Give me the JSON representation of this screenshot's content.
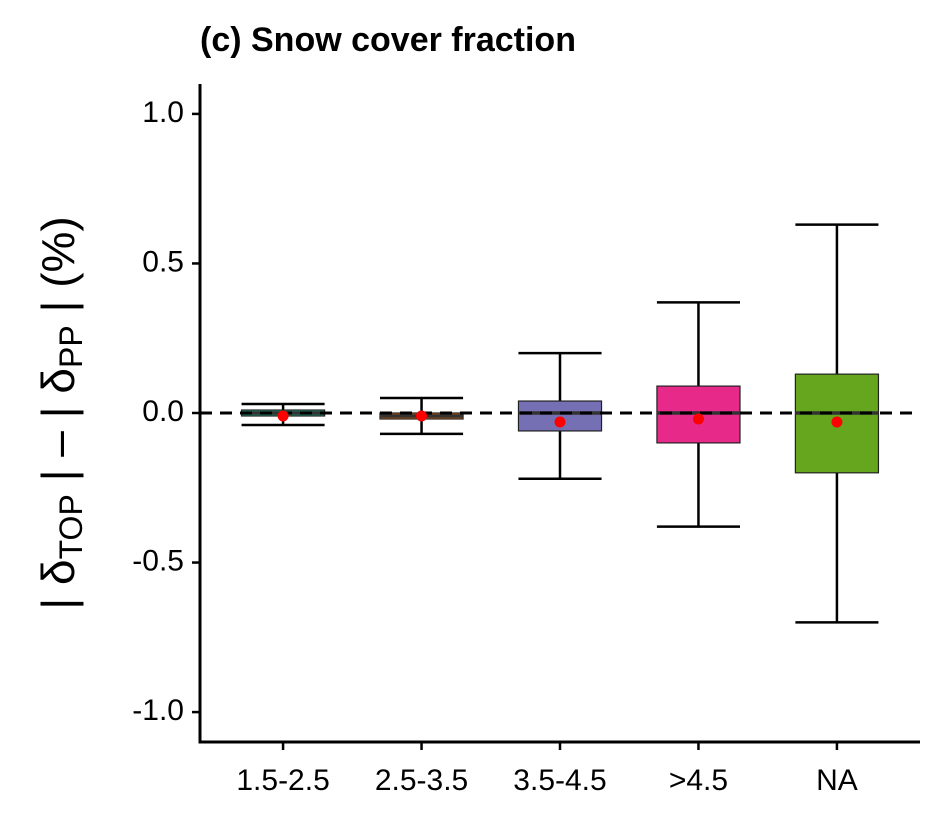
{
  "chart_data": {
    "type": "box",
    "title": "(c) Snow cover fraction",
    "y_label": {
      "prefix": "| δ",
      "sub1": "TOP",
      "middle": " | – | δ",
      "sub2": "PP",
      "suffix": " | (%)"
    },
    "categories": [
      "1.5-2.5",
      "2.5-3.5",
      "3.5-4.5",
      ">4.5",
      "NA"
    ],
    "boxes": [
      {
        "min": -0.04,
        "q1": -0.01,
        "median": 0,
        "q3": 0.01,
        "max": 0.03,
        "mean": -0.01,
        "color": "#1b9e77"
      },
      {
        "min": -0.07,
        "q1": -0.02,
        "median": -0.01,
        "q3": 0,
        "max": 0.05,
        "mean": -0.01,
        "color": "#d95f02"
      },
      {
        "min": -0.22,
        "q1": -0.06,
        "median": 0,
        "q3": 0.04,
        "max": 0.2,
        "mean": -0.03,
        "color": "#7570b3"
      },
      {
        "min": -0.38,
        "q1": -0.1,
        "median": 0,
        "q3": 0.09,
        "max": 0.37,
        "mean": -0.02,
        "color": "#e7298a"
      },
      {
        "min": -0.7,
        "q1": -0.2,
        "median": 0,
        "q3": 0.13,
        "max": 0.63,
        "mean": -0.03,
        "color": "#66a61e"
      }
    ],
    "mean_color": "#ff0000",
    "hline": 0,
    "ylim": [
      -1.1,
      1.1
    ],
    "yticks": [
      {
        "value": -1,
        "label": "-1.0"
      },
      -0.5,
      {
        "value": 0,
        "label": "0.0"
      },
      0.5,
      {
        "value": 1,
        "label": "1.0"
      }
    ]
  }
}
